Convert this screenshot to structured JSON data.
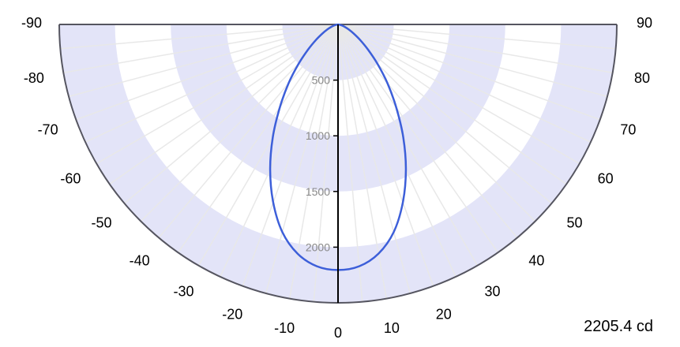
{
  "chart_data": {
    "type": "line",
    "chart_kind": "polar luminous intensity distribution (half-plane)",
    "angle_ticks": [
      -90,
      -80,
      -70,
      -60,
      -50,
      -40,
      -30,
      -20,
      -10,
      0,
      10,
      20,
      30,
      40,
      50,
      60,
      70,
      80,
      90
    ],
    "radial_ticks": [
      500,
      1000,
      1500,
      2000
    ],
    "r_max": 2500,
    "max_label": "2205.4 cd",
    "colors": {
      "curve": "#3d5fd9",
      "band": "#e3e4f8",
      "grid": "#e8e8e8",
      "frame": "#555560",
      "axis": "#000000"
    },
    "series": [
      {
        "x": [
          0,
          5,
          10,
          15,
          20,
          25,
          30,
          35,
          40,
          45,
          50,
          55,
          60,
          65,
          70,
          75,
          80,
          85,
          90
        ],
        "y": [
          2205.4,
          2180,
          2090,
          1930,
          1700,
          1440,
          1170,
          910,
          690,
          500,
          350,
          240,
          160,
          105,
          65,
          35,
          15,
          5,
          0
        ]
      }
    ]
  }
}
